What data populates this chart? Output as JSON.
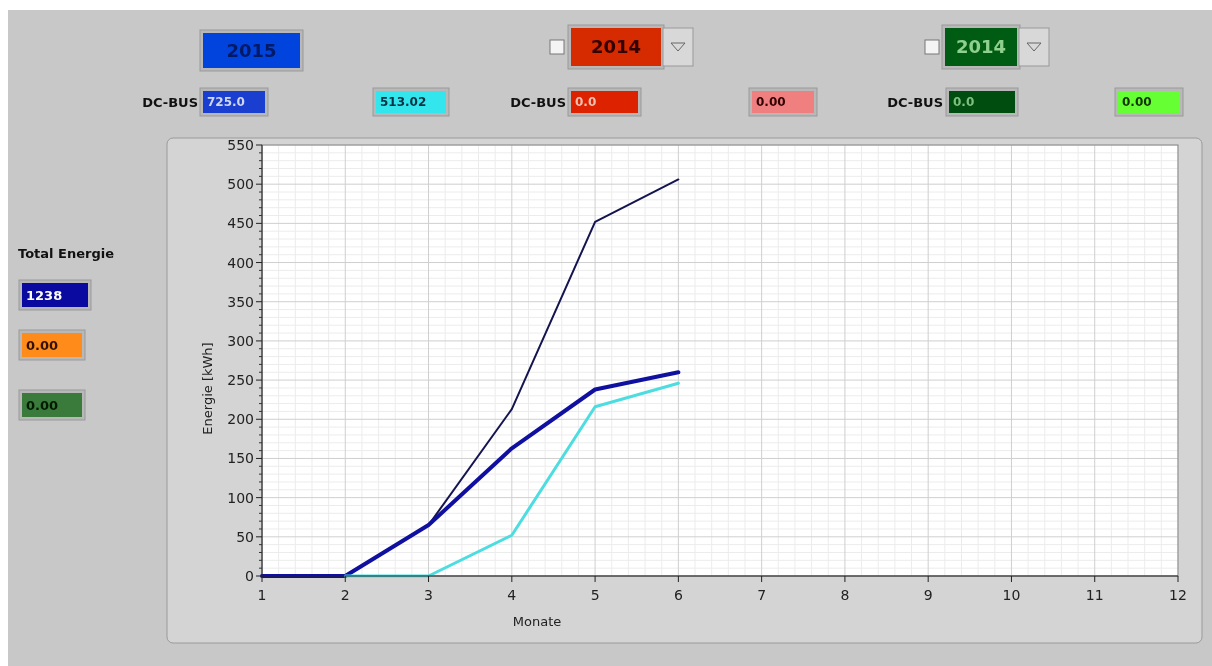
{
  "chart_data": {
    "type": "line",
    "xlabel": "Monate",
    "ylabel": "Energie [kWh]",
    "x": [
      1,
      2,
      3,
      4,
      5,
      6
    ],
    "series": [
      {
        "color": "#141450",
        "values": [
          0,
          0,
          65,
          213,
          452,
          506
        ]
      },
      {
        "color": "#1010a0",
        "values": [
          0,
          0,
          65,
          163,
          238,
          260
        ]
      },
      {
        "color": "#4ddde0",
        "x": [
          2,
          3,
          4,
          5,
          6
        ],
        "values": [
          0,
          0,
          52,
          216,
          246
        ]
      }
    ],
    "xlim": [
      1,
      12
    ],
    "xticks": [
      1,
      2,
      3,
      4,
      5,
      6,
      7,
      8,
      9,
      10,
      11,
      12
    ],
    "ylim": [
      0,
      550
    ],
    "yticks": [
      0,
      50,
      100,
      150,
      200,
      250,
      300,
      350,
      400,
      450,
      500,
      550
    ],
    "grid": true,
    "marker": "none",
    "line_style": "solid",
    "annotations": [
      "2015",
      "DC-BUS",
      "725.0",
      "513.02",
      "2014",
      "DC-BUS",
      "0.0",
      "0.00",
      "2014",
      "DC-BUS",
      "0.0",
      "0.00",
      "Total Energie",
      "1238",
      "0.00",
      "0.00"
    ]
  }
}
